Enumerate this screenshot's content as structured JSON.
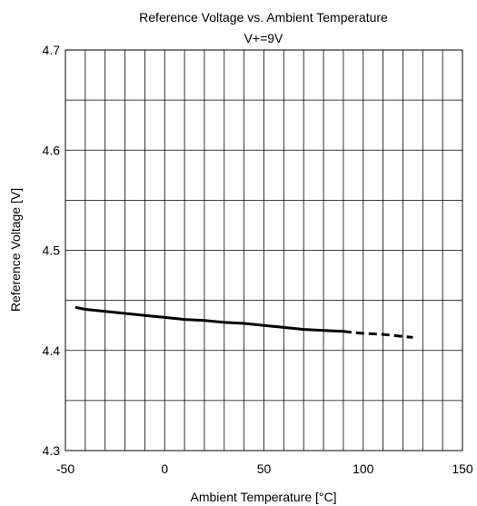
{
  "chart_data": {
    "type": "line",
    "title": "Reference Voltage vs. Ambient Temperature",
    "subtitle": "V+=9V",
    "xlabel": "Ambient Temperature [°C]",
    "ylabel": "Reference Voltage [V]",
    "xlim": [
      -50,
      150
    ],
    "ylim": [
      4.3,
      4.7
    ],
    "x_ticks": [
      -50,
      0,
      50,
      100,
      150
    ],
    "x_tick_labels": [
      "-50",
      "0",
      "50",
      "100",
      "150"
    ],
    "y_ticks": [
      4.3,
      4.4,
      4.5,
      4.6,
      4.7
    ],
    "y_tick_labels": [
      "4.3",
      "4.4",
      "4.5",
      "4.6",
      "4.7"
    ],
    "grid": true,
    "x_minor_step": 10,
    "y_minor_step": 0.05,
    "series": [
      {
        "x": [
          -45,
          -40,
          -30,
          -20,
          -10,
          0,
          10,
          20,
          30,
          40,
          50,
          60,
          70,
          80,
          90
        ],
        "y": [
          4.443,
          4.441,
          4.439,
          4.437,
          4.435,
          4.433,
          4.431,
          4.43,
          4.428,
          4.427,
          4.425,
          4.423,
          4.421,
          4.42,
          4.419
        ],
        "style": "solid",
        "color": "#000000"
      },
      {
        "x": [
          90,
          100,
          110,
          120,
          125
        ],
        "y": [
          4.419,
          4.417,
          4.416,
          4.414,
          4.413
        ],
        "style": "dashed",
        "color": "#000000"
      }
    ]
  }
}
